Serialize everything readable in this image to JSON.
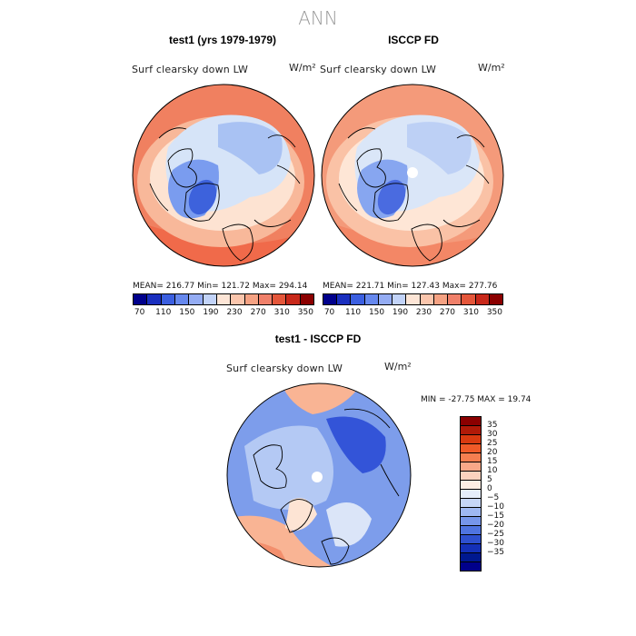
{
  "figure": {
    "title": "ANN",
    "panels": [
      {
        "id": "test1",
        "title": "test1 (yrs 1979-1979)",
        "variable": "Surf clearsky down LW",
        "units": "W/m²",
        "stats": "MEAN= 216.77   Min= 121.72   Max= 294.14",
        "field_colors": {
          "ocean_pacific": "#f08060",
          "ocean_atlantic": "#f06a4a",
          "mid_ring": "#f8b89a",
          "subarctic": "#fde3d2",
          "arctic": "#d6e4f8",
          "greenland": "#7a9cef",
          "greenland_core": "#3d62dc",
          "siberia": "#a9c2f3"
        }
      },
      {
        "id": "isccp",
        "title": "ISCCP FD",
        "variable": "Surf clearsky down LW",
        "units": "W/m²",
        "stats": "MEAN= 221.71   Min= 127.43   Max= 277.76",
        "field_colors": {
          "ocean_pacific": "#f49a7a",
          "ocean_atlantic": "#f38766",
          "mid_ring": "#fac2a6",
          "subarctic": "#fee6d6",
          "arctic": "#dae6f8",
          "greenland": "#87a6f0",
          "greenland_core": "#4a6be0",
          "siberia": "#bdd0f5"
        }
      },
      {
        "id": "diff",
        "title": "test1 - ISCCP FD",
        "variable": "Surf clearsky down LW",
        "units": "W/m²",
        "stats": "MIN = -27.75 MAX =  19.74"
      }
    ],
    "colorbar_abs": {
      "colors": [
        "#00008b",
        "#1a2fbf",
        "#3b5fe0",
        "#6688ee",
        "#94acf3",
        "#c2d3f8",
        "#fde5d6",
        "#fbc6ad",
        "#f5a283",
        "#f0806a",
        "#e4563a",
        "#c8281a",
        "#8b0000"
      ],
      "ticks": [
        "70",
        "110",
        "150",
        "190",
        "230",
        "270",
        "310",
        "350"
      ]
    },
    "colorbar_diff": {
      "colors": [
        "#8b0000",
        "#b01a08",
        "#d93a10",
        "#f05a28",
        "#f57e50",
        "#f9a888",
        "#fcd2be",
        "#fdeee4",
        "#e6eefb",
        "#c6d6f7",
        "#9fb8f2",
        "#7696ea",
        "#4f74e0",
        "#2e50cf",
        "#1430b8",
        "#00188f",
        "#00008b"
      ],
      "ticks": [
        "35",
        "30",
        "25",
        "20",
        "15",
        "10",
        "5",
        "0",
        "−5",
        "−10",
        "−15",
        "−20",
        "−25",
        "−30",
        "−35"
      ]
    },
    "diff_field_colors": {
      "base": "#7d9deb",
      "light": "#b4c9f4",
      "pale": "#dbe5f8",
      "deep": "#3354d8",
      "warm": "#f9b494",
      "warmer": "#f38f6d",
      "beige": "#fde4d4"
    }
  }
}
